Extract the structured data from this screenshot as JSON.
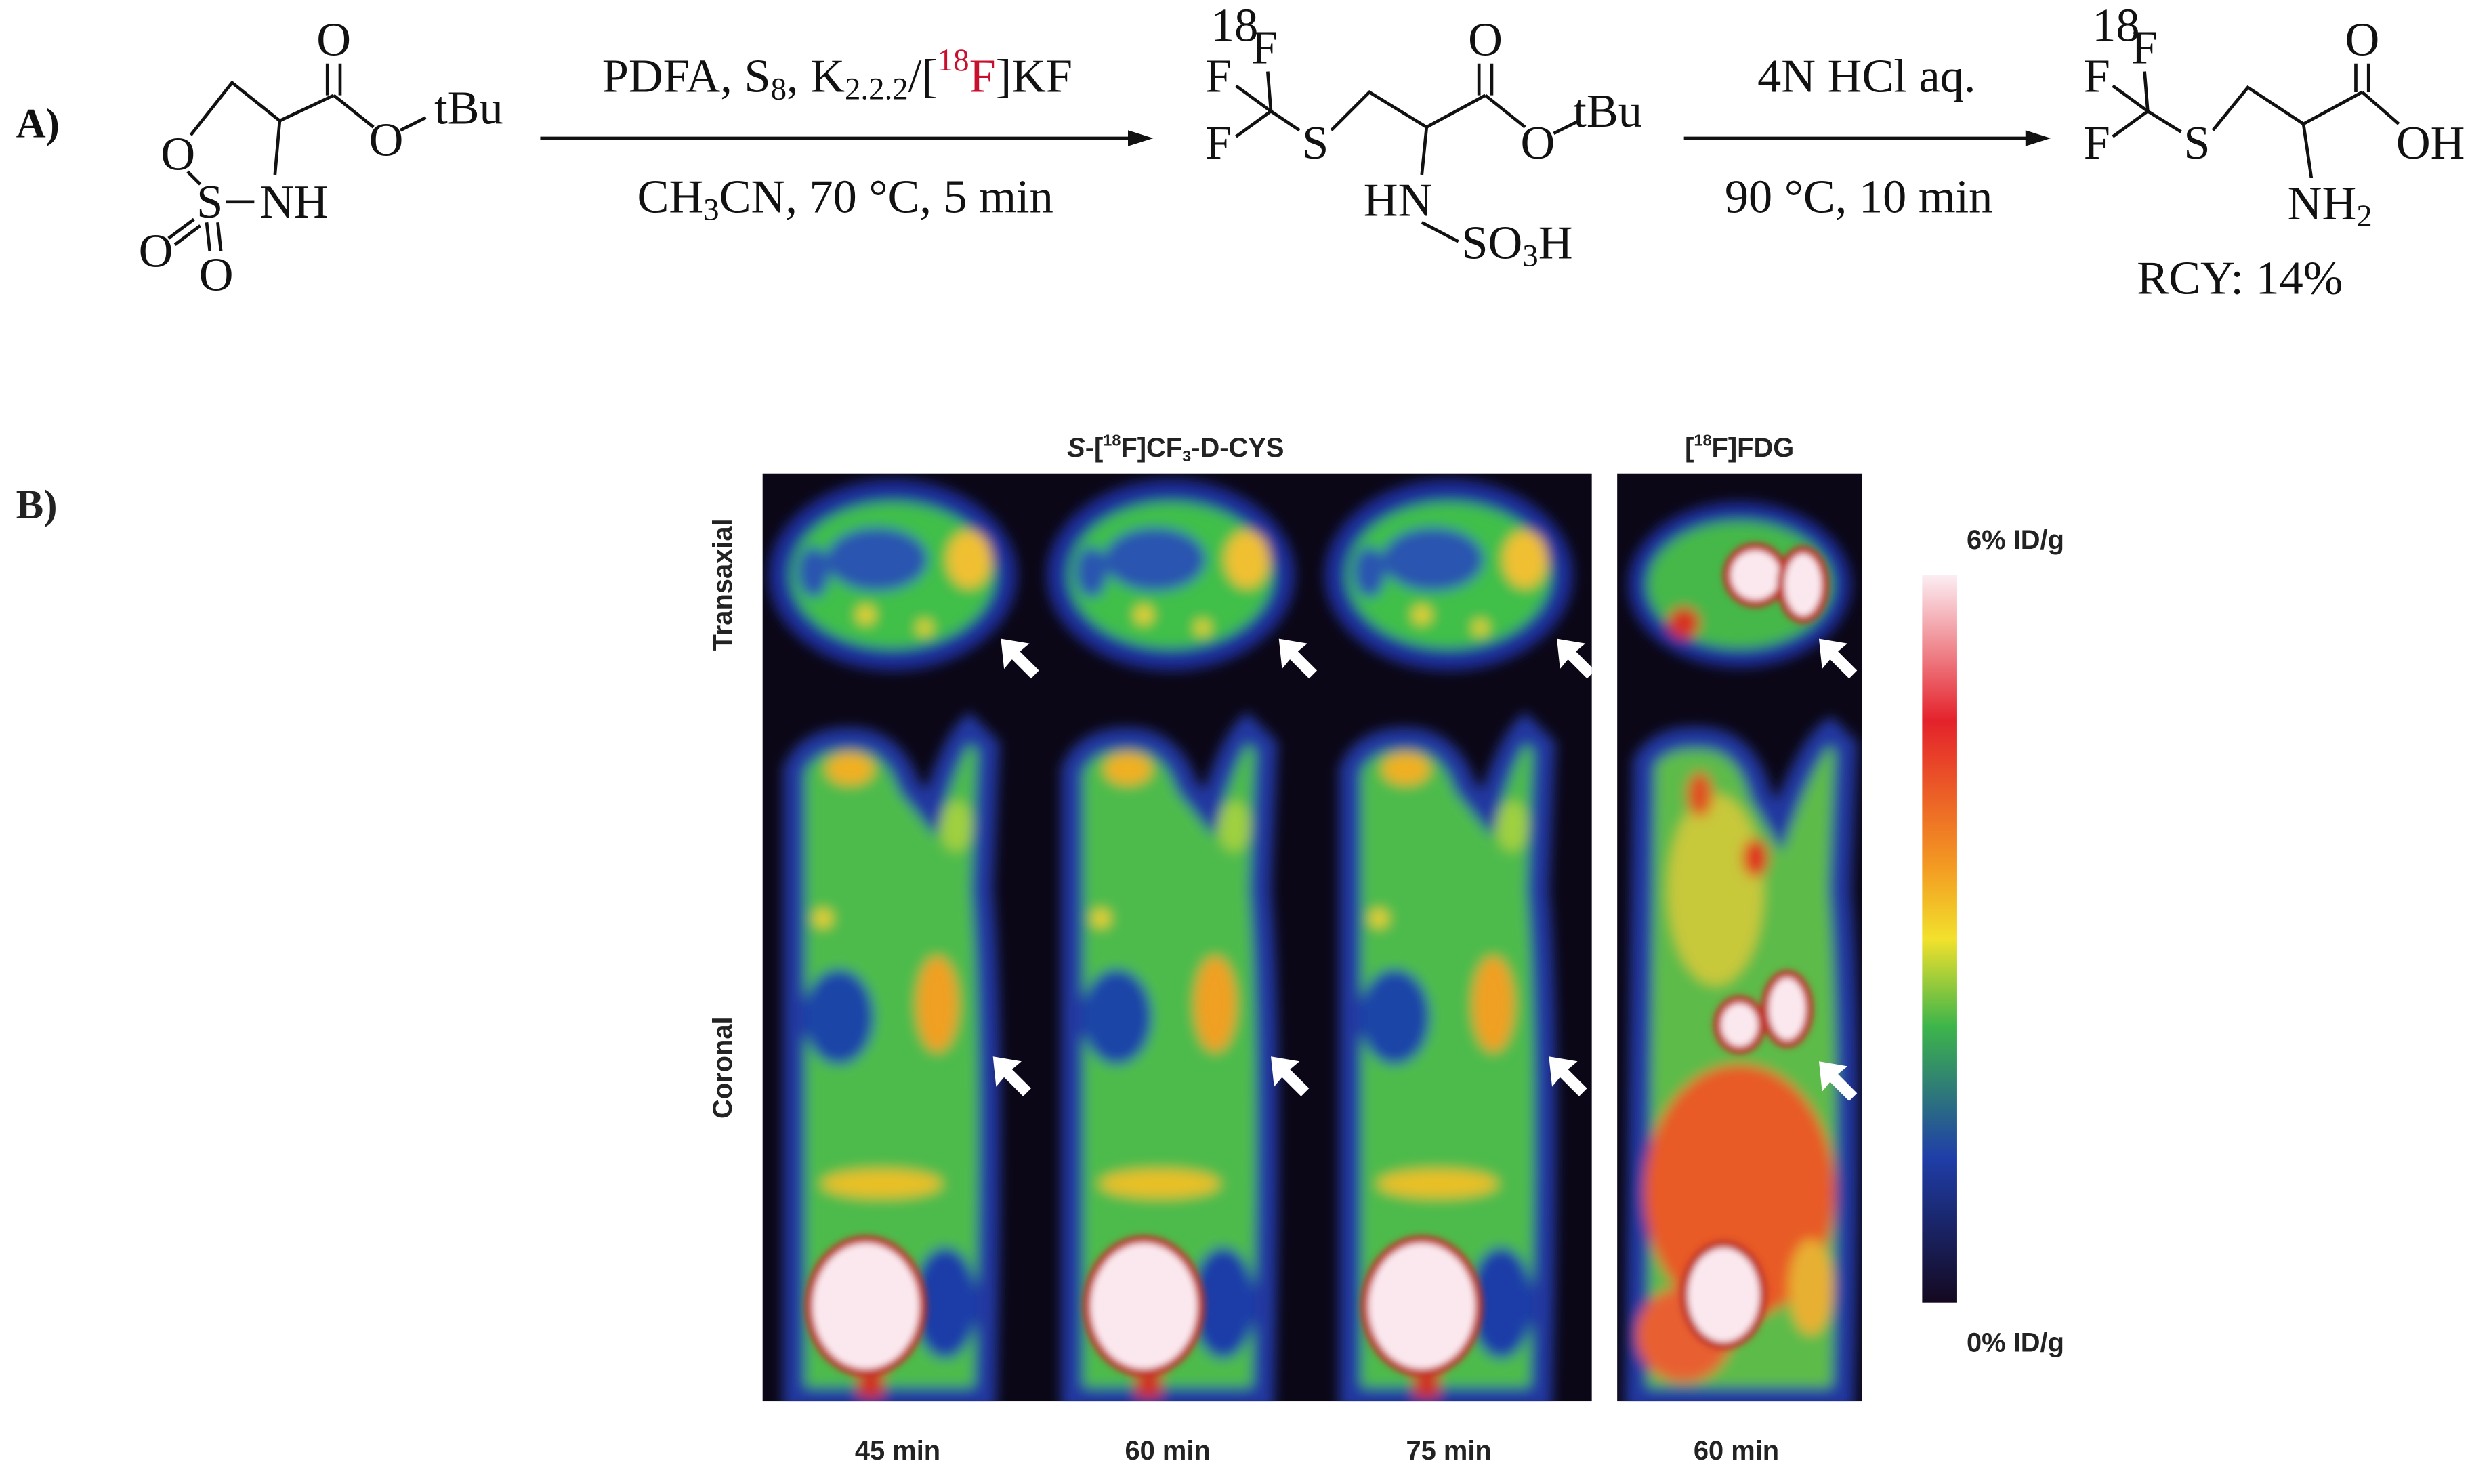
{
  "panel_a": {
    "label": "A)",
    "reactant": {
      "carbonyl_o": "O",
      "ester_o": "O",
      "tbu": "tBu",
      "ring_o": "O",
      "s": "S",
      "nh": "NH",
      "oxo_1": "O",
      "oxo_2": "O"
    },
    "step_1": {
      "above": [
        "PDFA, S",
        "8",
        ", K",
        "2.2.2",
        "/[",
        "18",
        "F",
        "]KF"
      ],
      "below": [
        "CH",
        "3",
        "CN, 70 °C, 5 min"
      ]
    },
    "intermediate": {
      "isotope": "18",
      "f_top": "F",
      "f_1": "F",
      "f_2": "F",
      "s": "S",
      "carbonyl_o": "O",
      "ester_o": "O",
      "tbu": "tBu",
      "hn": "HN",
      "so3h": [
        "SO",
        "3",
        "H"
      ]
    },
    "step_2": {
      "above": "4N HCl aq.",
      "below": "90 °C, 10 min"
    },
    "product": {
      "isotope": "18",
      "f_top": "F",
      "f_1": "F",
      "f_2": "F",
      "s": "S",
      "carbonyl_o": "O",
      "oh": "OH",
      "nh2": [
        "NH",
        "2"
      ],
      "yield": "RCY: 14%"
    }
  },
  "panel_b": {
    "label": "B)",
    "titles": [
      [
        "S",
        "-[",
        "18",
        "F]CF",
        "3",
        "-D-CYS"
      ],
      [
        "[",
        "18",
        "F]FDG"
      ]
    ],
    "row_labels": [
      "Transaxial",
      "Coronal"
    ],
    "time_labels": [
      "45 min",
      "60 min",
      "75 min",
      "60 min"
    ],
    "scale_max": "6% ID/g",
    "scale_min": "0% ID/g"
  }
}
